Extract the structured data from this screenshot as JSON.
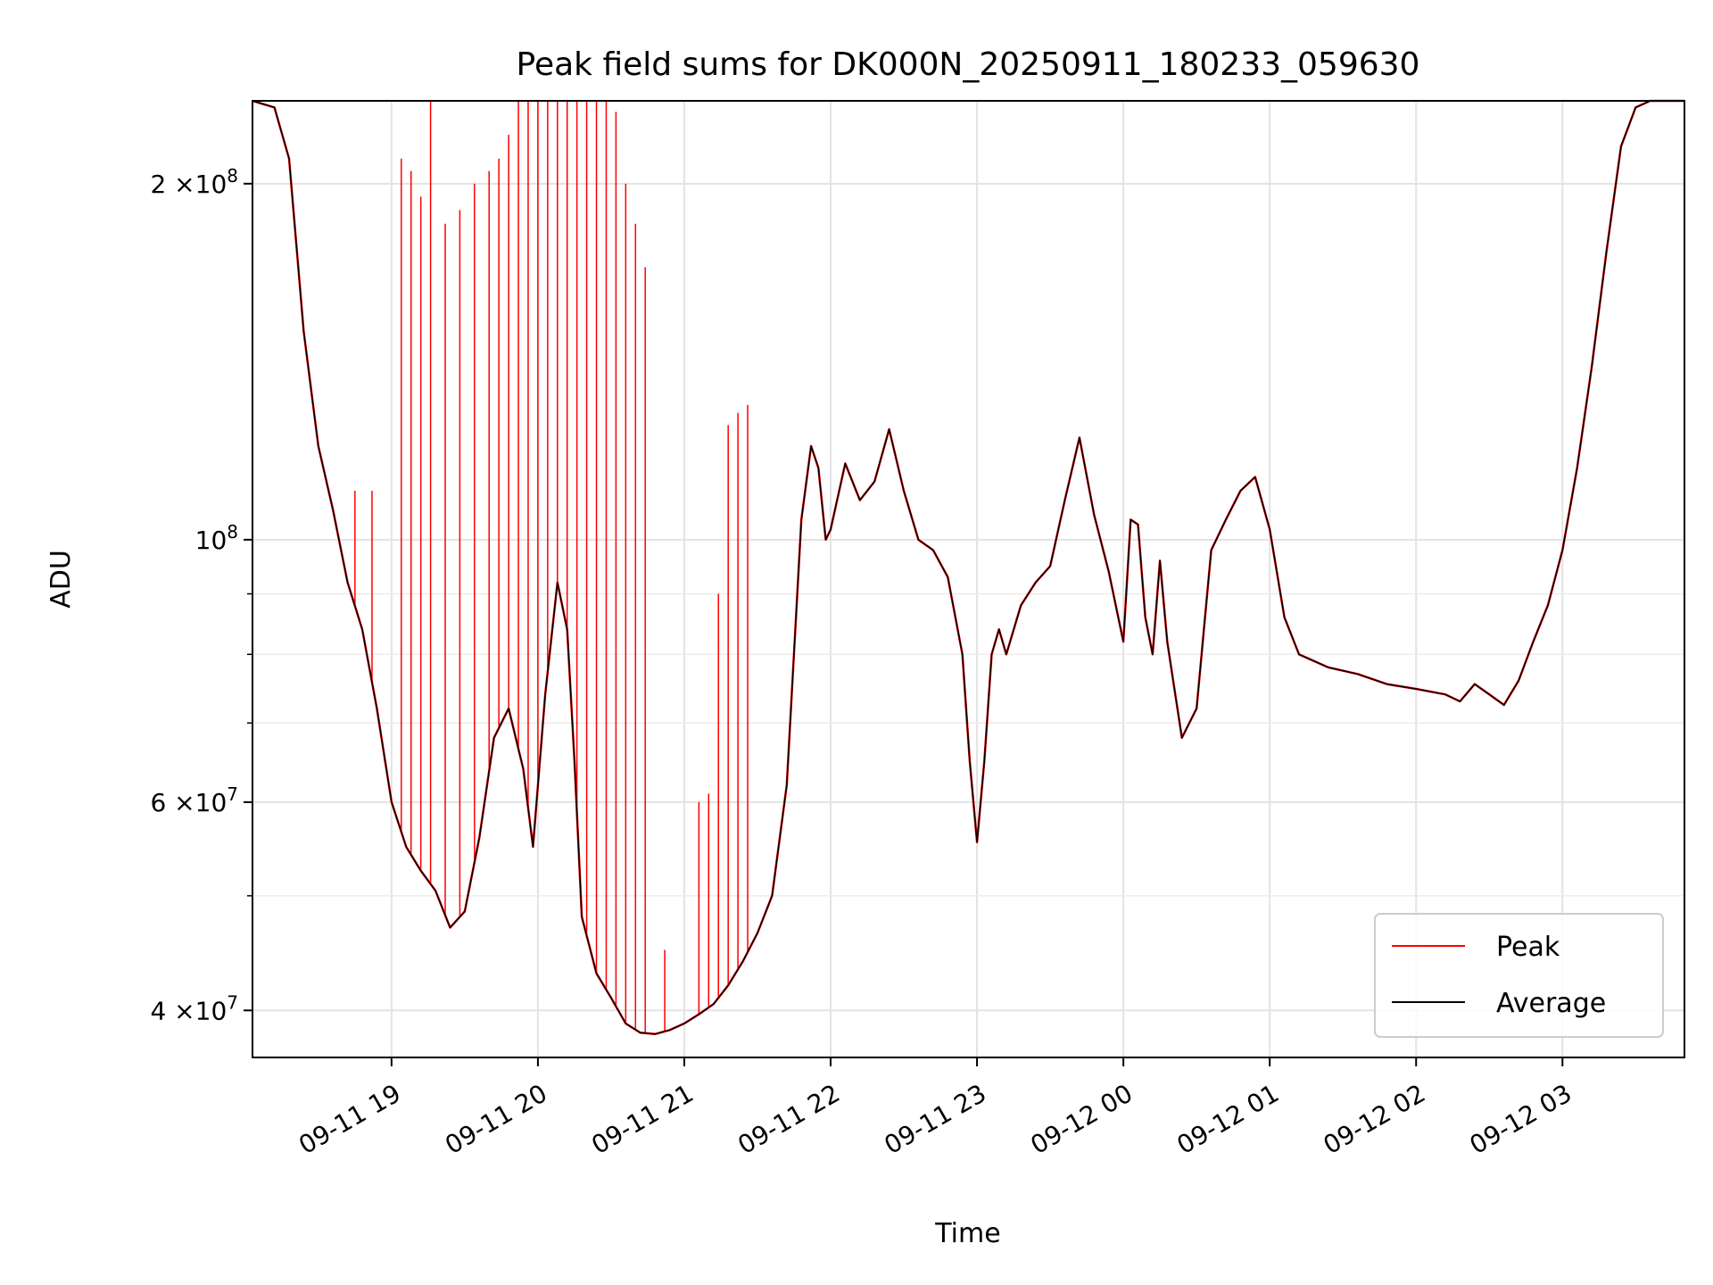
{
  "chart_data": {
    "type": "line",
    "title": "Peak field sums for DK000N_20250911_180233_059630",
    "xlabel": "Time",
    "ylabel": "ADU",
    "y_scale": "log",
    "ylim": [
      36500000,
      235000000
    ],
    "xlim": [
      "2025-09-11 18:03",
      "2025-09-12 03:50"
    ],
    "grid": true,
    "legend_position": "lower-right",
    "x_ticks": [
      {
        "t": "2025-09-11 19:00",
        "label": "09-11 19"
      },
      {
        "t": "2025-09-11 20:00",
        "label": "09-11 20"
      },
      {
        "t": "2025-09-11 21:00",
        "label": "09-11 21"
      },
      {
        "t": "2025-09-11 22:00",
        "label": "09-11 22"
      },
      {
        "t": "2025-09-11 23:00",
        "label": "09-11 23"
      },
      {
        "t": "2025-09-12 00:00",
        "label": "09-12 00"
      },
      {
        "t": "2025-09-12 01:00",
        "label": "09-12 01"
      },
      {
        "t": "2025-09-12 02:00",
        "label": "09-12 02"
      },
      {
        "t": "2025-09-12 03:00",
        "label": "09-12 03"
      }
    ],
    "y_ticks": [
      {
        "v": 40000000,
        "label": "4 × 10^7"
      },
      {
        "v": 60000000,
        "label": "6 × 10^7"
      },
      {
        "v": 100000000,
        "label": "10^8"
      },
      {
        "v": 200000000,
        "label": "2 × 10^8"
      }
    ],
    "y_minor_ticks": [
      50000000,
      70000000,
      80000000,
      90000000
    ],
    "series": [
      {
        "name": "Average",
        "color": "#000000",
        "points": [
          [
            "2025-09-11 18:03",
            235000000
          ],
          [
            "2025-09-11 18:12",
            232000000
          ],
          [
            "2025-09-11 18:18",
            210000000
          ],
          [
            "2025-09-11 18:24",
            150000000
          ],
          [
            "2025-09-11 18:30",
            120000000
          ],
          [
            "2025-09-11 18:36",
            106000000
          ],
          [
            "2025-09-11 18:42",
            92000000
          ],
          [
            "2025-09-11 18:48",
            84000000
          ],
          [
            "2025-09-11 18:54",
            72000000
          ],
          [
            "2025-09-11 19:00",
            60000000
          ],
          [
            "2025-09-11 19:06",
            55000000
          ],
          [
            "2025-09-11 19:12",
            52500000
          ],
          [
            "2025-09-11 19:18",
            50500000
          ],
          [
            "2025-09-11 19:24",
            47000000
          ],
          [
            "2025-09-11 19:30",
            48500000
          ],
          [
            "2025-09-11 19:36",
            56000000
          ],
          [
            "2025-09-11 19:42",
            68000000
          ],
          [
            "2025-09-11 19:48",
            72000000
          ],
          [
            "2025-09-11 19:54",
            64000000
          ],
          [
            "2025-09-11 19:58",
            55000000
          ],
          [
            "2025-09-11 20:03",
            74000000
          ],
          [
            "2025-09-11 20:08",
            92000000
          ],
          [
            "2025-09-11 20:12",
            84000000
          ],
          [
            "2025-09-11 20:15",
            65000000
          ],
          [
            "2025-09-11 20:18",
            48000000
          ],
          [
            "2025-09-11 20:24",
            43000000
          ],
          [
            "2025-09-11 20:30",
            41000000
          ],
          [
            "2025-09-11 20:36",
            39000000
          ],
          [
            "2025-09-11 20:42",
            38300000
          ],
          [
            "2025-09-11 20:48",
            38200000
          ],
          [
            "2025-09-11 20:54",
            38500000
          ],
          [
            "2025-09-11 21:00",
            39000000
          ],
          [
            "2025-09-11 21:06",
            39700000
          ],
          [
            "2025-09-11 21:12",
            40500000
          ],
          [
            "2025-09-11 21:18",
            42000000
          ],
          [
            "2025-09-11 21:24",
            44000000
          ],
          [
            "2025-09-11 21:30",
            46500000
          ],
          [
            "2025-09-11 21:36",
            50000000
          ],
          [
            "2025-09-11 21:42",
            62000000
          ],
          [
            "2025-09-11 21:48",
            104000000
          ],
          [
            "2025-09-11 21:52",
            120000000
          ],
          [
            "2025-09-11 21:55",
            115000000
          ],
          [
            "2025-09-11 21:58",
            100000000
          ],
          [
            "2025-09-11 22:00",
            102000000
          ],
          [
            "2025-09-11 22:06",
            116000000
          ],
          [
            "2025-09-11 22:12",
            108000000
          ],
          [
            "2025-09-11 22:18",
            112000000
          ],
          [
            "2025-09-11 22:24",
            124000000
          ],
          [
            "2025-09-11 22:30",
            110000000
          ],
          [
            "2025-09-11 22:36",
            100000000
          ],
          [
            "2025-09-11 22:42",
            98000000
          ],
          [
            "2025-09-11 22:48",
            93000000
          ],
          [
            "2025-09-11 22:54",
            80000000
          ],
          [
            "2025-09-11 22:57",
            65000000
          ],
          [
            "2025-09-11 23:00",
            55500000
          ],
          [
            "2025-09-11 23:03",
            65000000
          ],
          [
            "2025-09-11 23:06",
            80000000
          ],
          [
            "2025-09-11 23:09",
            84000000
          ],
          [
            "2025-09-11 23:12",
            80000000
          ],
          [
            "2025-09-11 23:18",
            88000000
          ],
          [
            "2025-09-11 23:24",
            92000000
          ],
          [
            "2025-09-11 23:30",
            95000000
          ],
          [
            "2025-09-11 23:36",
            108000000
          ],
          [
            "2025-09-11 23:42",
            122000000
          ],
          [
            "2025-09-11 23:48",
            105000000
          ],
          [
            "2025-09-11 23:54",
            94000000
          ],
          [
            "2025-09-12 00:00",
            82000000
          ],
          [
            "2025-09-12 00:03",
            104000000
          ],
          [
            "2025-09-12 00:06",
            103000000
          ],
          [
            "2025-09-12 00:09",
            86000000
          ],
          [
            "2025-09-12 00:12",
            80000000
          ],
          [
            "2025-09-12 00:15",
            96000000
          ],
          [
            "2025-09-12 00:18",
            82000000
          ],
          [
            "2025-09-12 00:24",
            68000000
          ],
          [
            "2025-09-12 00:30",
            72000000
          ],
          [
            "2025-09-12 00:36",
            98000000
          ],
          [
            "2025-09-12 00:42",
            104000000
          ],
          [
            "2025-09-12 00:48",
            110000000
          ],
          [
            "2025-09-12 00:54",
            113000000
          ],
          [
            "2025-09-12 01:00",
            102000000
          ],
          [
            "2025-09-12 01:06",
            86000000
          ],
          [
            "2025-09-12 01:12",
            80000000
          ],
          [
            "2025-09-12 01:24",
            78000000
          ],
          [
            "2025-09-12 01:36",
            77000000
          ],
          [
            "2025-09-12 01:48",
            75500000
          ],
          [
            "2025-09-12 02:00",
            74800000
          ],
          [
            "2025-09-12 02:12",
            74000000
          ],
          [
            "2025-09-12 02:18",
            73000000
          ],
          [
            "2025-09-12 02:24",
            75500000
          ],
          [
            "2025-09-12 02:30",
            74000000
          ],
          [
            "2025-09-12 02:36",
            72500000
          ],
          [
            "2025-09-12 02:42",
            76000000
          ],
          [
            "2025-09-12 02:48",
            82000000
          ],
          [
            "2025-09-12 02:54",
            88000000
          ],
          [
            "2025-09-12 03:00",
            98000000
          ],
          [
            "2025-09-12 03:06",
            115000000
          ],
          [
            "2025-09-12 03:12",
            140000000
          ],
          [
            "2025-09-12 03:18",
            175000000
          ],
          [
            "2025-09-12 03:24",
            215000000
          ],
          [
            "2025-09-12 03:30",
            232000000
          ],
          [
            "2025-09-12 03:36",
            235000000
          ],
          [
            "2025-09-12 03:50",
            235000000
          ]
        ]
      },
      {
        "name": "Peak",
        "color": "#ff0000",
        "spikes": [
          [
            "2025-09-11 18:45",
            110000000
          ],
          [
            "2025-09-11 18:52",
            110000000
          ],
          [
            "2025-09-11 19:04",
            210000000
          ],
          [
            "2025-09-11 19:08",
            205000000
          ],
          [
            "2025-09-11 19:12",
            195000000
          ],
          [
            "2025-09-11 19:16",
            235000000
          ],
          [
            "2025-09-11 19:22",
            185000000
          ],
          [
            "2025-09-11 19:28",
            190000000
          ],
          [
            "2025-09-11 19:34",
            200000000
          ],
          [
            "2025-09-11 19:40",
            205000000
          ],
          [
            "2025-09-11 19:44",
            210000000
          ],
          [
            "2025-09-11 19:48",
            220000000
          ],
          [
            "2025-09-11 19:52",
            235000000
          ],
          [
            "2025-09-11 19:56",
            235000000
          ],
          [
            "2025-09-11 20:00",
            235000000
          ],
          [
            "2025-09-11 20:04",
            235000000
          ],
          [
            "2025-09-11 20:08",
            235000000
          ],
          [
            "2025-09-11 20:12",
            235000000
          ],
          [
            "2025-09-11 20:16",
            235000000
          ],
          [
            "2025-09-11 20:20",
            235000000
          ],
          [
            "2025-09-11 20:24",
            235000000
          ],
          [
            "2025-09-11 20:28",
            235000000
          ],
          [
            "2025-09-11 20:32",
            230000000
          ],
          [
            "2025-09-11 20:36",
            200000000
          ],
          [
            "2025-09-11 20:40",
            185000000
          ],
          [
            "2025-09-11 20:44",
            170000000
          ],
          [
            "2025-09-11 20:52",
            45000000
          ],
          [
            "2025-09-11 21:06",
            60000000
          ],
          [
            "2025-09-11 21:10",
            61000000
          ],
          [
            "2025-09-11 21:14",
            90000000
          ],
          [
            "2025-09-11 21:18",
            125000000
          ],
          [
            "2025-09-11 21:22",
            128000000
          ],
          [
            "2025-09-11 21:26",
            130000000
          ]
        ]
      }
    ]
  }
}
